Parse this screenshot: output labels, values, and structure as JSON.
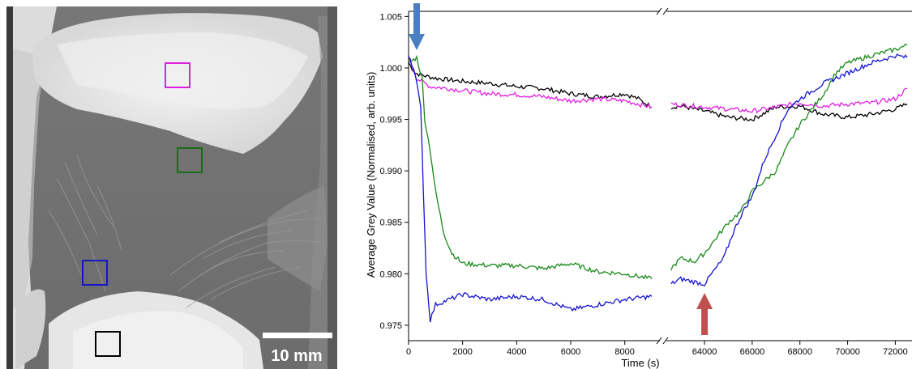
{
  "micrograph": {
    "scale_bar_label": "10 mm",
    "roi_boxes": [
      {
        "name": "roi-box-magenta",
        "color": "#e020e0"
      },
      {
        "name": "roi-box-green",
        "color": "#1a6b1a"
      },
      {
        "name": "roi-box-blue",
        "color": "#1414c8"
      },
      {
        "name": "roi-box-black",
        "color": "#000000"
      }
    ]
  },
  "chart_data": {
    "type": "line",
    "title": "",
    "xlabel": "Time (s)",
    "ylabel": "Average Grey Value (Normalised, arb. units)",
    "ylim": [
      0.9735,
      1.0055
    ],
    "y_ticks": [
      "0.975",
      "0.980",
      "0.985",
      "0.990",
      "0.995",
      "1.000",
      "1.005"
    ],
    "y_tick_values": [
      0.975,
      0.98,
      0.985,
      0.99,
      0.995,
      1.0,
      1.005
    ],
    "x_ticks_left": [
      "0",
      "2000",
      "4000",
      "6000",
      "8000"
    ],
    "x_ticks_left_values": [
      0,
      2000,
      4000,
      6000,
      8000
    ],
    "x_ticks_right": [
      "64000",
      "66000",
      "68000",
      "70000",
      "72000"
    ],
    "x_ticks_right_values": [
      64000,
      66000,
      68000,
      70000,
      72000
    ],
    "x_break": {
      "left_range": [
        0,
        9300
      ],
      "right_range": [
        62400,
        72700
      ]
    },
    "grid": false,
    "legend": "none",
    "annotations": [
      {
        "type": "arrow-down",
        "x": 300,
        "color": "#4a7fc1"
      },
      {
        "type": "arrow-up",
        "x": 64000,
        "color": "#c0504d"
      }
    ],
    "series": [
      {
        "color": "#000000",
        "segments": [
          [
            [
              0,
              1.0005
            ],
            [
              250,
              0.9995
            ],
            [
              500,
              0.9993
            ],
            [
              1000,
              0.999
            ],
            [
              2000,
              0.9987
            ],
            [
              3000,
              0.9985
            ],
            [
              4000,
              0.9982
            ],
            [
              5000,
              0.998
            ],
            [
              6000,
              0.9975
            ],
            [
              7000,
              0.9972
            ],
            [
              8000,
              0.9975
            ],
            [
              8500,
              0.997
            ],
            [
              9000,
              0.9962
            ]
          ],
          [
            [
              62600,
              0.9962
            ],
            [
              63000,
              0.9963
            ],
            [
              64000,
              0.9958
            ],
            [
              65000,
              0.9952
            ],
            [
              66000,
              0.995
            ],
            [
              67000,
              0.9962
            ],
            [
              68000,
              0.9963
            ],
            [
              69000,
              0.9955
            ],
            [
              70000,
              0.9952
            ],
            [
              71000,
              0.9955
            ],
            [
              72000,
              0.996
            ],
            [
              72500,
              0.9965
            ]
          ]
        ]
      },
      {
        "color": "#e020e0",
        "segments": [
          [
            [
              0,
              1.0012
            ],
            [
              300,
              0.999
            ],
            [
              800,
              0.9982
            ],
            [
              1500,
              0.998
            ],
            [
              2000,
              0.9978
            ],
            [
              3000,
              0.9975
            ],
            [
              4000,
              0.9974
            ],
            [
              5000,
              0.9972
            ],
            [
              6000,
              0.9968
            ],
            [
              7000,
              0.997
            ],
            [
              8000,
              0.9968
            ],
            [
              9000,
              0.9962
            ]
          ],
          [
            [
              62600,
              0.9965
            ],
            [
              63000,
              0.9964
            ],
            [
              64000,
              0.9962
            ],
            [
              65000,
              0.996
            ],
            [
              66000,
              0.9958
            ],
            [
              67000,
              0.9962
            ],
            [
              68000,
              0.9966
            ],
            [
              69000,
              0.9963
            ],
            [
              70000,
              0.9965
            ],
            [
              71000,
              0.9966
            ],
            [
              72000,
              0.997
            ],
            [
              72500,
              0.998
            ]
          ]
        ]
      },
      {
        "color": "#1a8a1a",
        "segments": [
          [
            [
              0,
              1.0005
            ],
            [
              300,
              1.001
            ],
            [
              500,
              0.999
            ],
            [
              600,
              0.995
            ],
            [
              800,
              0.992
            ],
            [
              1000,
              0.988
            ],
            [
              1300,
              0.984
            ],
            [
              1600,
              0.982
            ],
            [
              2000,
              0.981
            ],
            [
              3000,
              0.9808
            ],
            [
              4000,
              0.9808
            ],
            [
              5000,
              0.9805
            ],
            [
              6000,
              0.981
            ],
            [
              7000,
              0.9802
            ],
            [
              8000,
              0.98
            ],
            [
              9000,
              0.9795
            ]
          ],
          [
            [
              62600,
              0.9805
            ],
            [
              63000,
              0.9815
            ],
            [
              63600,
              0.9812
            ],
            [
              64000,
              0.982
            ],
            [
              64500,
              0.9835
            ],
            [
              65000,
              0.985
            ],
            [
              65500,
              0.986
            ],
            [
              66000,
              0.988
            ],
            [
              66500,
              0.989
            ],
            [
              67000,
              0.99
            ],
            [
              67500,
              0.9925
            ],
            [
              68000,
              0.9945
            ],
            [
              68500,
              0.996
            ],
            [
              69000,
              0.9975
            ],
            [
              69500,
              0.9995
            ],
            [
              70000,
              1.0005
            ],
            [
              71000,
              1.0012
            ],
            [
              72000,
              1.0018
            ],
            [
              72500,
              1.0022
            ]
          ]
        ]
      },
      {
        "color": "#1414d2",
        "segments": [
          [
            [
              0,
              1.0012
            ],
            [
              250,
              0.9995
            ],
            [
              450,
              0.996
            ],
            [
              550,
              0.988
            ],
            [
              650,
              0.98
            ],
            [
              800,
              0.9755
            ],
            [
              1000,
              0.977
            ],
            [
              1500,
              0.9775
            ],
            [
              2000,
              0.978
            ],
            [
              3000,
              0.9775
            ],
            [
              4000,
              0.9778
            ],
            [
              5000,
              0.9775
            ],
            [
              6000,
              0.9765
            ],
            [
              7000,
              0.977
            ],
            [
              8000,
              0.9775
            ],
            [
              9000,
              0.9778
            ]
          ],
          [
            [
              62600,
              0.979
            ],
            [
              63000,
              0.9795
            ],
            [
              63600,
              0.9792
            ],
            [
              64000,
              0.979
            ],
            [
              64300,
              0.98
            ],
            [
              64800,
              0.9815
            ],
            [
              65200,
              0.984
            ],
            [
              65600,
              0.986
            ],
            [
              66000,
              0.9875
            ],
            [
              66500,
              0.991
            ],
            [
              67000,
              0.9935
            ],
            [
              67500,
              0.996
            ],
            [
              68000,
              0.997
            ],
            [
              69000,
              0.9985
            ],
            [
              70000,
              0.9995
            ],
            [
              71000,
              1.0005
            ],
            [
              72000,
              1.0012
            ],
            [
              72500,
              1.001
            ]
          ]
        ]
      }
    ]
  }
}
